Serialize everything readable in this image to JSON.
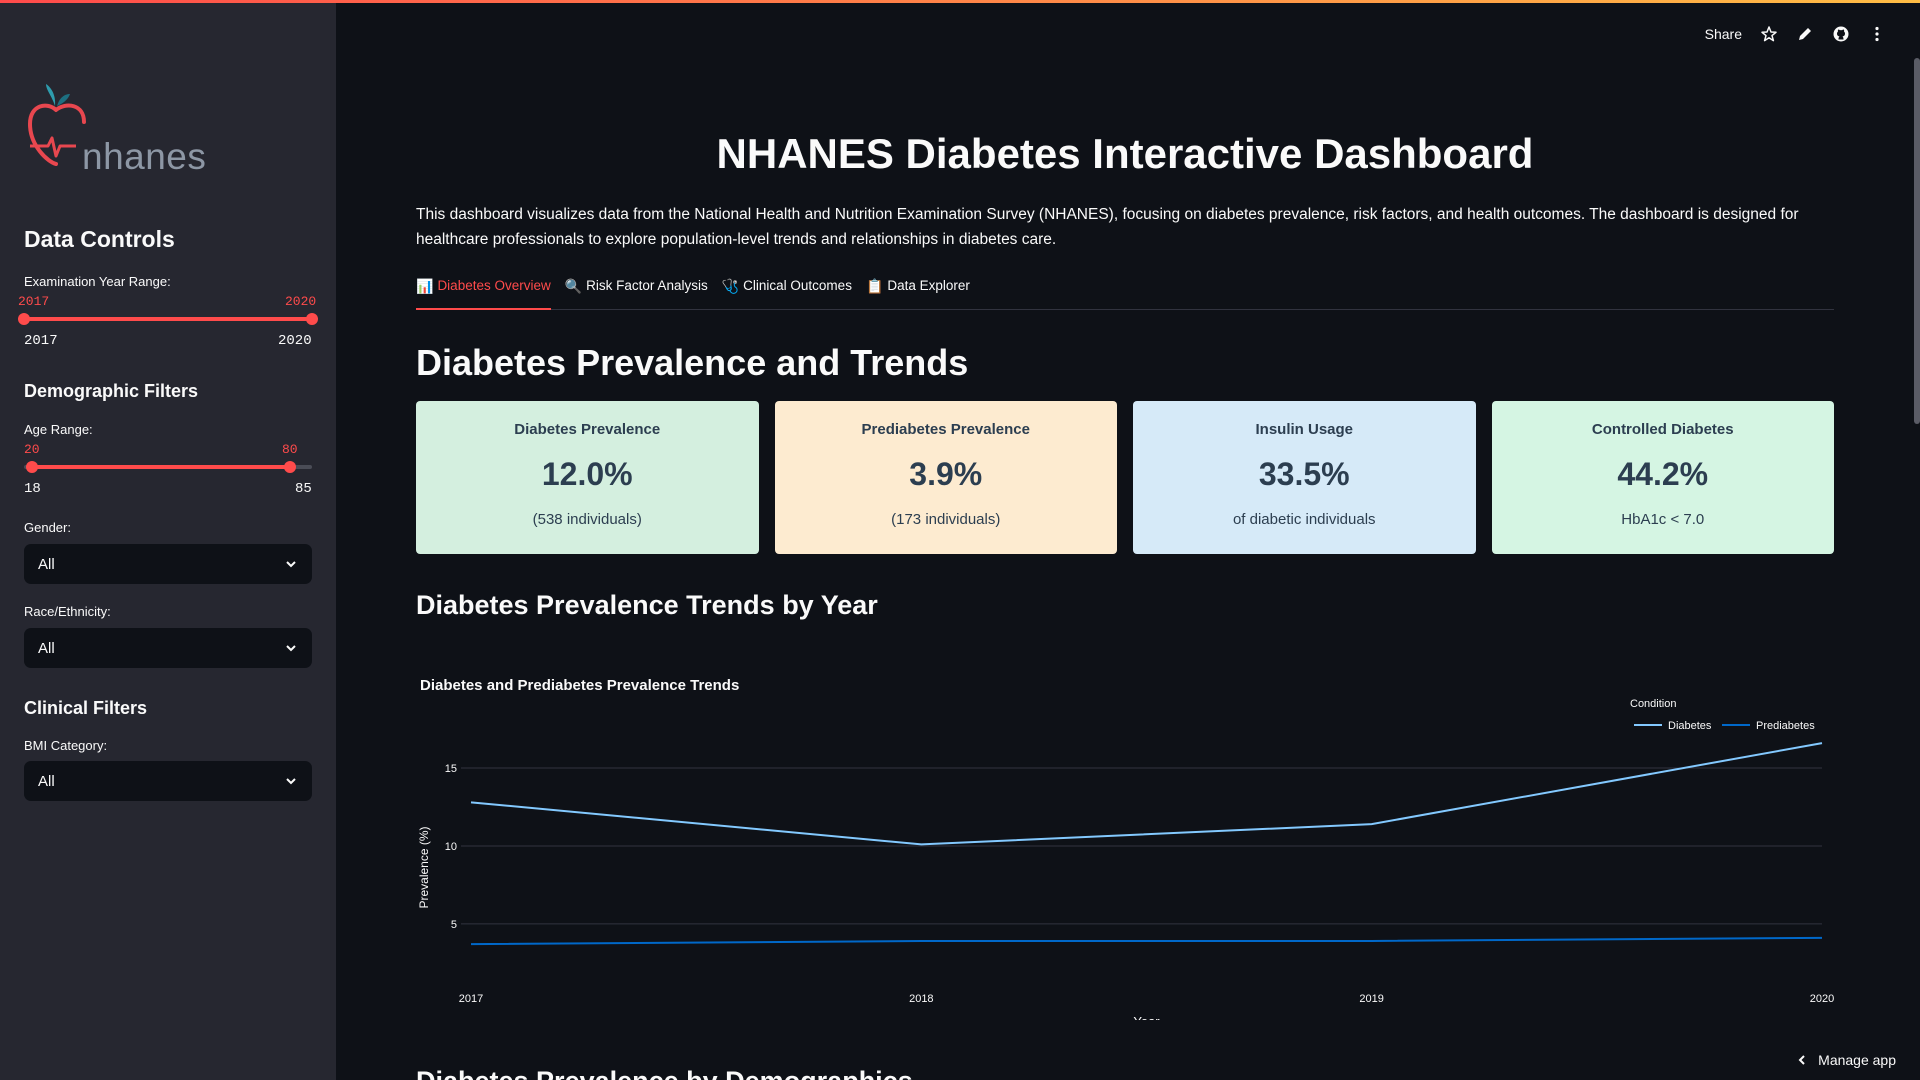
{
  "header": {
    "share_label": "Share",
    "manage_app_label": "Manage app"
  },
  "sidebar": {
    "logo_text": "nhanes",
    "data_controls_title": "Data Controls",
    "year_slider": {
      "label": "Examination Year Range:",
      "low": "2017",
      "high": "2020",
      "min": "2017",
      "max": "2020"
    },
    "demographic_title": "Demographic Filters",
    "age_slider": {
      "label": "Age Range:",
      "low": "20",
      "high": "80",
      "min": "18",
      "max": "85"
    },
    "gender": {
      "label": "Gender:",
      "value": "All"
    },
    "race": {
      "label": "Race/Ethnicity:",
      "value": "All"
    },
    "clinical_title": "Clinical Filters",
    "bmi": {
      "label": "BMI Category:",
      "value": "All"
    }
  },
  "main": {
    "title": "NHANES Diabetes Interactive Dashboard",
    "intro": "This dashboard visualizes data from the National Health and Nutrition Examination Survey (NHANES), focusing on diabetes prevalence, risk factors, and health outcomes. The dashboard is designed for healthcare professionals to explore population-level trends and relationships in diabetes care.",
    "tabs": [
      {
        "icon": "📊",
        "label": "Diabetes Overview"
      },
      {
        "icon": "🔍",
        "label": "Risk Factor Analysis"
      },
      {
        "icon": "🩺",
        "label": "Clinical Outcomes"
      },
      {
        "icon": "📋",
        "label": "Data Explorer"
      }
    ],
    "section_title": "Diabetes Prevalence and Trends",
    "cards": [
      {
        "title": "Diabetes Prevalence",
        "value": "12.0%",
        "sub": "(538 individuals)",
        "color": "#d4efdf"
      },
      {
        "title": "Prediabetes Prevalence",
        "value": "3.9%",
        "sub": "(173 individuals)",
        "color": "#fdebd0"
      },
      {
        "title": "Insulin Usage",
        "value": "33.5%",
        "sub": "of diabetic individuals",
        "color": "#d6eaf8"
      },
      {
        "title": "Controlled Diabetes",
        "value": "44.2%",
        "sub": "HbA1c < 7.0",
        "color": "#d5f5e3"
      }
    ],
    "trends_title": "Diabetes Prevalence Trends by Year",
    "next_section_title": "Diabetes Prevalence by Demographics"
  },
  "chart_data": {
    "type": "line",
    "title": "Diabetes and Prediabetes Prevalence Trends",
    "xlabel": "Year",
    "ylabel": "Prevalence (%)",
    "x": [
      "2017",
      "2018",
      "2019",
      "2020"
    ],
    "yticks": [
      5,
      10,
      15
    ],
    "ylim": [
      3,
      16.8
    ],
    "legend_title": "Condition",
    "legend_position": "top-right",
    "grid": true,
    "series": [
      {
        "name": "Diabetes",
        "values": [
          12.8,
          10.1,
          11.4,
          16.6
        ],
        "color": "#83c9ff"
      },
      {
        "name": "Prediabetes",
        "values": [
          3.7,
          3.9,
          3.9,
          4.1
        ],
        "color": "#0068c9"
      }
    ]
  }
}
